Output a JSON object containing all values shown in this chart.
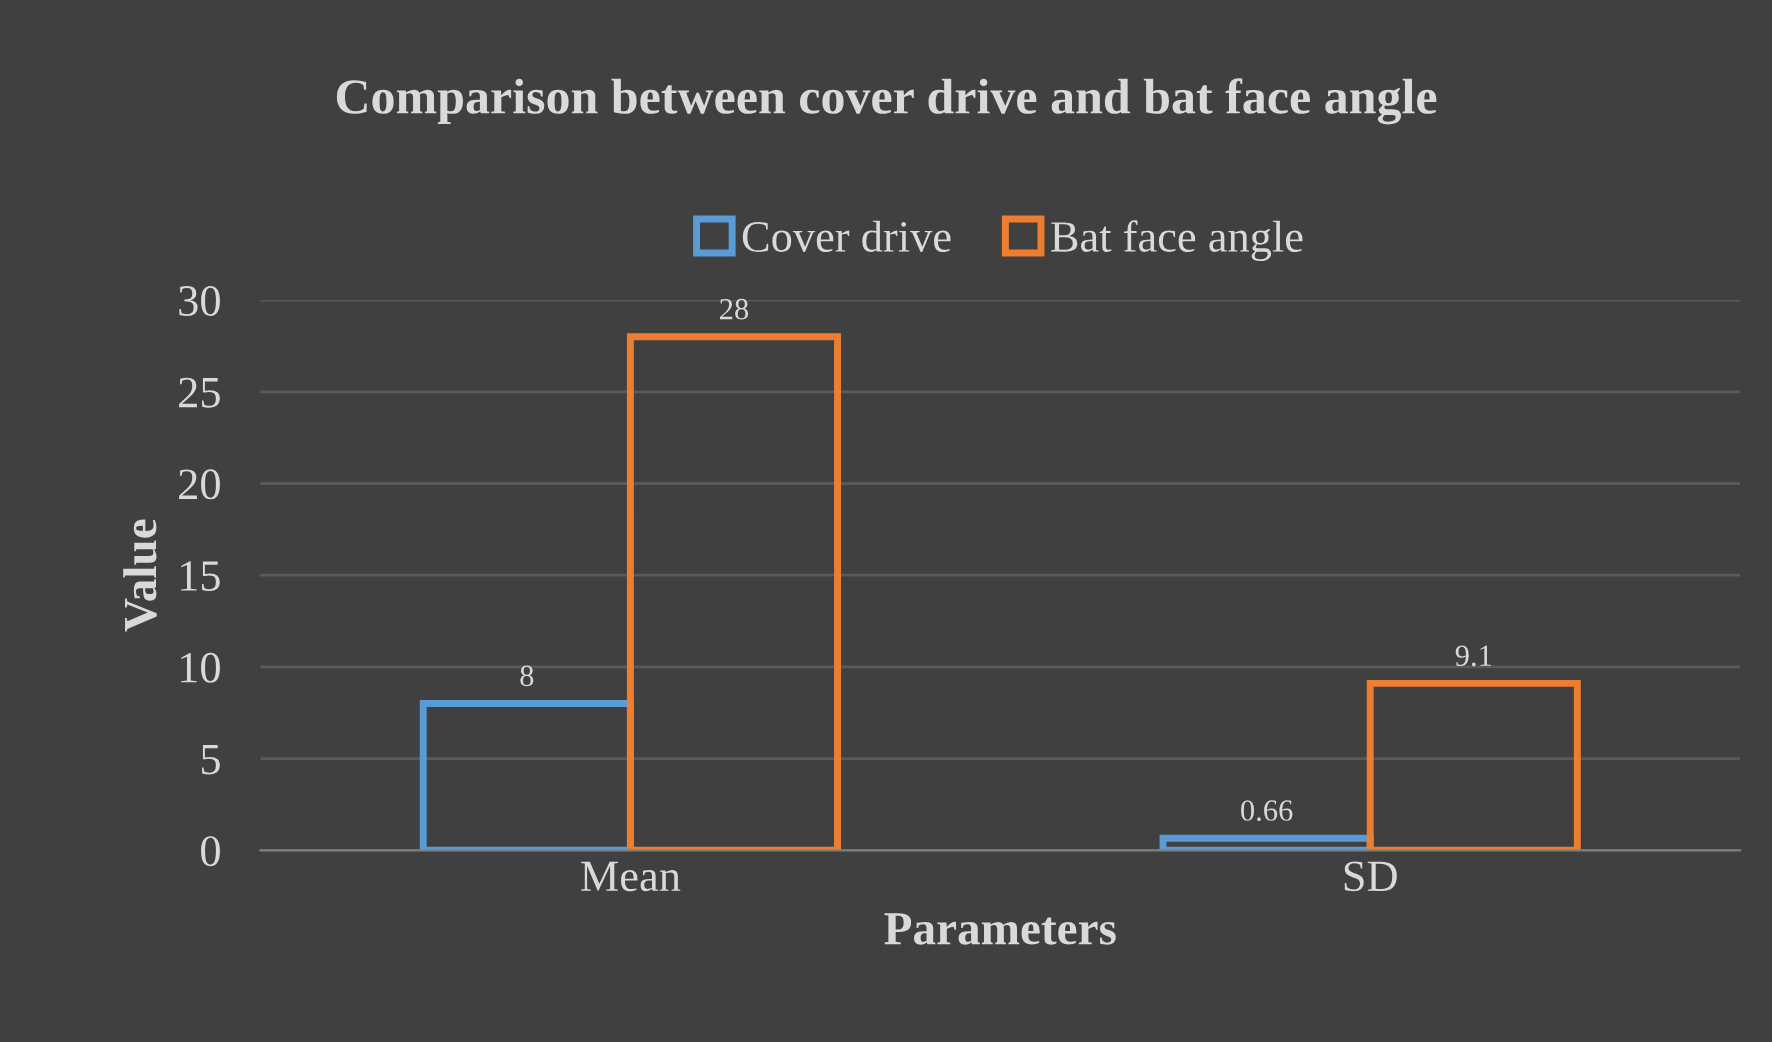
{
  "chart_data": {
    "type": "bar",
    "title": "Comparison between cover drive and bat face angle",
    "xlabel": "Parameters",
    "ylabel": "Value",
    "categories": [
      "Mean",
      "SD"
    ],
    "series": [
      {
        "name": "Cover drive",
        "color": "#5b9bd5",
        "values": [
          8,
          0.66
        ]
      },
      {
        "name": "Bat face angle",
        "color": "#ed7d31",
        "values": [
          28,
          9.1
        ]
      }
    ],
    "ylim": [
      0,
      30
    ],
    "yticks": [
      0,
      5,
      10,
      15,
      20,
      25,
      30
    ],
    "grid": "y",
    "legend": "top",
    "data_labels": true
  }
}
